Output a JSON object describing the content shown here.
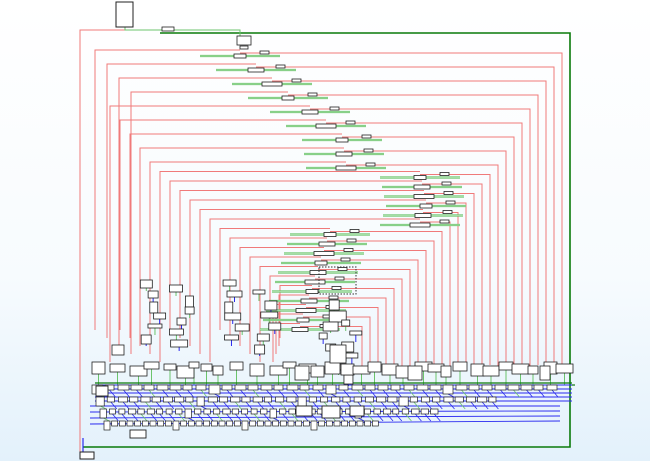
{
  "view": {
    "type": "control-flow graph overview",
    "background_top": "#ffffff",
    "background_bottom": "#e3f1fb"
  },
  "colors": {
    "edge_false": "#f07a7a",
    "edge_true": "#6cc46c",
    "edge_unconditional": "#2a2af0",
    "loop_edge": "#0a7a0a",
    "node_fill": "#ffffff",
    "node_border": "#202020"
  },
  "counts": {
    "ladder_levels": 26,
    "bottom_dispatch_blocks": 36,
    "bottom_rows": 4
  }
}
